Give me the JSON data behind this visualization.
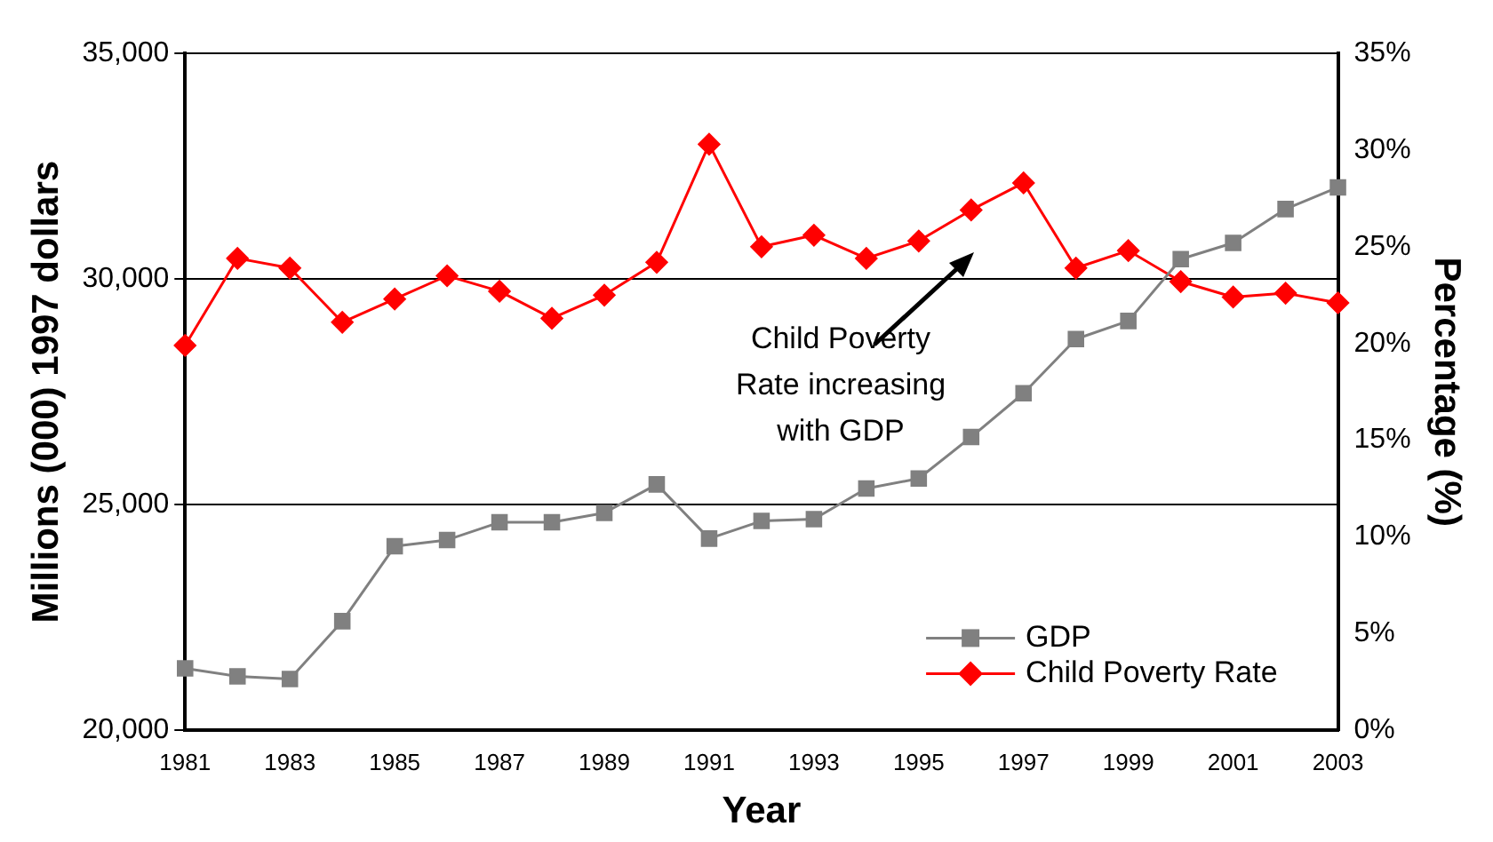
{
  "chart_data": {
    "type": "line",
    "xlabel": "Year",
    "ylabel": "Millions (000) 1997 dollars",
    "y2label": "Percentage (%)",
    "categories": [
      "1981",
      null,
      "1983",
      null,
      "1985",
      null,
      "1987",
      null,
      "1989",
      null,
      "1991",
      null,
      "1993",
      null,
      "1995",
      null,
      "1997",
      null,
      "1999",
      null,
      "2001",
      null,
      "2003"
    ],
    "series": [
      {
        "name": "GDP",
        "color": "#808080",
        "marker": "square",
        "values": [
          21375,
          21200,
          21140,
          22420,
          24080,
          24220,
          24610,
          24610,
          24820,
          25450,
          24250,
          24640,
          24680,
          25360,
          25580,
          26500,
          27470,
          28670,
          29070,
          30440,
          30800,
          31550,
          32030
        ]
      },
      {
        "name": "Child Poverty Rate",
        "color": "#ff0000",
        "marker": "diamond",
        "axis": "y2",
        "values": [
          19.9,
          24.4,
          23.9,
          21.1,
          22.3,
          23.5,
          22.7,
          21.3,
          22.5,
          24.2,
          30.3,
          25.0,
          25.6,
          24.4,
          25.3,
          26.9,
          28.3,
          23.9,
          24.8,
          23.2,
          22.4,
          22.6,
          22.1
        ]
      }
    ],
    "ylim": [
      20000,
      35000
    ],
    "yticks": [
      {
        "value": 20000,
        "label": "20,000"
      },
      {
        "value": 25000,
        "label": "25,000"
      },
      {
        "value": 30000,
        "label": "30,000"
      },
      {
        "value": 35000,
        "label": "35,000"
      }
    ],
    "y2lim": [
      0,
      35
    ],
    "y2ticks": [
      {
        "value": 0,
        "label": "0%"
      },
      {
        "value": 5,
        "label": "5%"
      },
      {
        "value": 10,
        "label": "10%"
      },
      {
        "value": 15,
        "label": "15%"
      },
      {
        "value": 20,
        "label": "20%"
      },
      {
        "value": 25,
        "label": "25%"
      },
      {
        "value": 30,
        "label": "30%"
      },
      {
        "value": 35,
        "label": "35%"
      }
    ],
    "grid": "y",
    "legend": "bottom right",
    "line_style": "solid",
    "annotations": [
      "Child Poverty\nRate increasing\nwith GDP"
    ]
  }
}
